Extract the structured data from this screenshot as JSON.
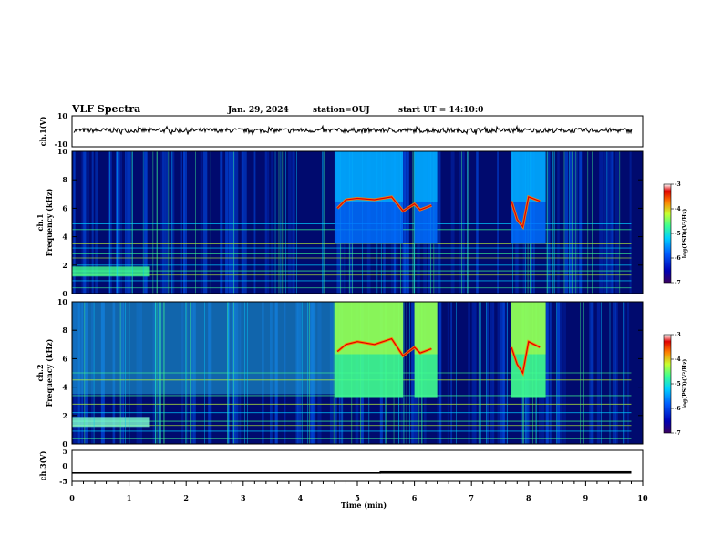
{
  "header": {
    "title": "VLF Spectra",
    "date": "Jan. 29, 2024",
    "station": "station=OUJ",
    "start": "start UT = 14:10:0"
  },
  "colors": {
    "background": "#000a6e",
    "colormap": [
      "#3a005e",
      "#0000b4",
      "#0060ff",
      "#00d0ff",
      "#40ff90",
      "#c8ff30",
      "#ff8000",
      "#e00000",
      "#ffffff"
    ]
  },
  "chart_data": [
    {
      "type": "line",
      "panel": "ch1-waveform",
      "ylabel": "ch.1(V)",
      "ylim": [
        -10,
        10
      ],
      "yticks": [
        "10",
        "-10"
      ],
      "x": [
        0,
        10
      ],
      "series": [
        {
          "values": [
            0.6,
            0.6
          ],
          "note_values": "noisy waveform band approx +/-1.5 V around +0.6 V"
        }
      ]
    },
    {
      "type": "heatmap",
      "panel": "ch1-spectrogram",
      "ylabel": "ch.1 Frequency (kHz)",
      "ylim": [
        0,
        10
      ],
      "yticks": [
        "0",
        "2",
        "4",
        "6",
        "8",
        "10"
      ],
      "xlim": [
        0,
        10
      ],
      "colorbar": {
        "label": "log(PSD)(V²/Hz)",
        "range": [
          -7,
          -3
        ],
        "ticks": [
          "-3",
          "-4",
          "-5",
          "-6",
          "-7"
        ]
      },
      "lines_khz": [
        0.4,
        0.9,
        1.3,
        1.6,
        2.0,
        2.5,
        2.8,
        3.2,
        3.5,
        4.5,
        4.9
      ],
      "bursts": [
        {
          "t0": 4.6,
          "t1": 5.8,
          "f0": 3.5,
          "f1": 10
        },
        {
          "t0": 6.0,
          "t1": 6.4,
          "f0": 3.5,
          "f1": 10
        },
        {
          "t0": 7.7,
          "t1": 8.3,
          "f0": 3.5,
          "f1": 10
        }
      ],
      "chorus": [
        [
          4.65,
          6.0
        ],
        [
          4.8,
          6.6
        ],
        [
          5.0,
          6.7
        ],
        [
          5.3,
          6.6
        ],
        [
          5.6,
          6.8
        ],
        [
          5.8,
          5.8
        ],
        [
          6.0,
          6.3
        ],
        [
          6.1,
          5.9
        ],
        [
          6.3,
          6.2
        ],
        [
          7.7,
          6.5
        ],
        [
          7.8,
          5.2
        ],
        [
          7.9,
          4.7
        ],
        [
          8.0,
          6.8
        ],
        [
          8.2,
          6.5
        ]
      ]
    },
    {
      "type": "heatmap",
      "panel": "ch2-spectrogram",
      "ylabel": "ch.2 Frequency (kHz)",
      "ylim": [
        0,
        10
      ],
      "yticks": [
        "0",
        "2",
        "4",
        "6",
        "8",
        "10"
      ],
      "xlim": [
        0,
        10
      ],
      "colorbar": {
        "label": "log(PSD)(V²/Hz)",
        "range": [
          -7,
          -3
        ],
        "ticks": [
          "-3",
          "-4",
          "-5",
          "-6",
          "-7"
        ]
      },
      "lines_khz": [
        0.4,
        0.9,
        1.3,
        1.6,
        2.2,
        2.8,
        3.4,
        4.0,
        4.5,
        5.0
      ],
      "bursts": [
        {
          "t0": 4.6,
          "t1": 5.8,
          "f0": 3.3,
          "f1": 10
        },
        {
          "t0": 6.0,
          "t1": 6.4,
          "f0": 3.3,
          "f1": 10
        },
        {
          "t0": 7.7,
          "t1": 8.3,
          "f0": 3.3,
          "f1": 10
        }
      ],
      "chorus": [
        [
          4.65,
          6.5
        ],
        [
          4.8,
          7.0
        ],
        [
          5.0,
          7.2
        ],
        [
          5.3,
          7.0
        ],
        [
          5.6,
          7.4
        ],
        [
          5.8,
          6.2
        ],
        [
          6.0,
          6.8
        ],
        [
          6.1,
          6.4
        ],
        [
          6.3,
          6.7
        ],
        [
          7.7,
          6.8
        ],
        [
          7.8,
          5.6
        ],
        [
          7.9,
          5.0
        ],
        [
          8.0,
          7.2
        ],
        [
          8.2,
          6.8
        ]
      ]
    },
    {
      "type": "line",
      "panel": "ch3",
      "ylabel": "ch.3(V)",
      "ylim": [
        -5,
        5
      ],
      "yticks": [
        "5",
        "0",
        "-5"
      ],
      "xlabel": "Time (min)",
      "xlim": [
        0,
        10
      ],
      "xticks": [
        "0",
        "1",
        "2",
        "3",
        "4",
        "5",
        "6",
        "7",
        "8",
        "9",
        "10"
      ],
      "series": [
        {
          "x": [
            0,
            5.4,
            5.4,
            9.8
          ],
          "values": [
            -2.3,
            -2.3,
            -2.1,
            -2.1
          ]
        }
      ]
    }
  ]
}
